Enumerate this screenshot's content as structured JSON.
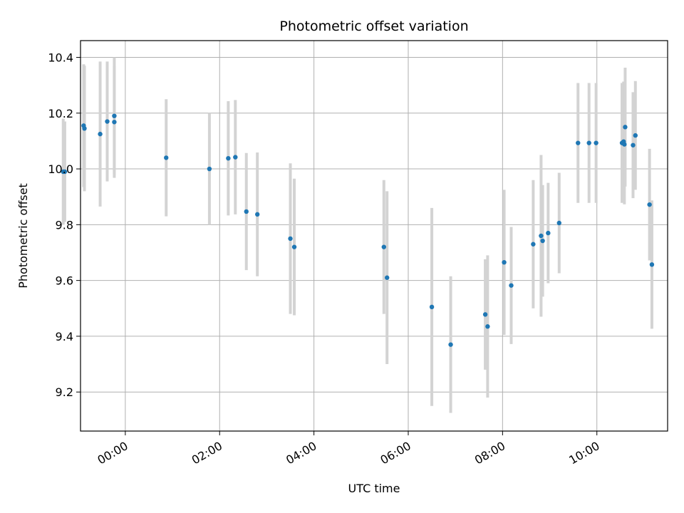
{
  "chart_data": {
    "type": "scatter",
    "title": "Photometric offset variation",
    "xlabel": "UTC time",
    "ylabel": "Photometric offset",
    "xlim": [
      "-00:57",
      "11:30"
    ],
    "ylim": [
      9.06,
      10.46
    ],
    "x_ticks": [
      "00:00",
      "02:00",
      "04:00",
      "06:00",
      "08:00",
      "10:00"
    ],
    "y_ticks": [
      9.2,
      9.4,
      9.6,
      9.8,
      10.0,
      10.2,
      10.4
    ],
    "grid": true,
    "point_color": "#1f77b4",
    "errorbar_color": "#d3d3d3",
    "points": [
      {
        "t": "-01:19",
        "y": 9.99,
        "err": 0.19
      },
      {
        "t": "-01:17",
        "y": 9.99,
        "err": 0.18
      },
      {
        "t": "-00:53",
        "y": 10.155,
        "err": 0.22
      },
      {
        "t": "-00:52",
        "y": 10.145,
        "err": 0.225
      },
      {
        "t": "-00:32",
        "y": 10.125,
        "err": 0.26
      },
      {
        "t": "-00:23",
        "y": 10.17,
        "err": 0.215
      },
      {
        "t": "-00:14",
        "y": 10.19,
        "err": 0.21
      },
      {
        "t": "-00:14",
        "y": 10.168,
        "err": 0.2
      },
      {
        "t": "00:52",
        "y": 10.04,
        "err": 0.21
      },
      {
        "t": "01:47",
        "y": 10.0,
        "err": 0.2
      },
      {
        "t": "02:11",
        "y": 10.038,
        "err": 0.205
      },
      {
        "t": "02:20",
        "y": 10.042,
        "err": 0.205
      },
      {
        "t": "02:34",
        "y": 9.847,
        "err": 0.21
      },
      {
        "t": "02:48",
        "y": 9.837,
        "err": 0.222
      },
      {
        "t": "03:30",
        "y": 9.75,
        "err": 0.27
      },
      {
        "t": "03:35",
        "y": 9.72,
        "err": 0.245
      },
      {
        "t": "05:29",
        "y": 9.72,
        "err": 0.24
      },
      {
        "t": "05:33",
        "y": 9.61,
        "err": 0.31
      },
      {
        "t": "06:30",
        "y": 9.505,
        "err": 0.355
      },
      {
        "t": "06:54",
        "y": 9.37,
        "err": 0.245
      },
      {
        "t": "07:38",
        "y": 9.478,
        "err": 0.198
      },
      {
        "t": "07:41",
        "y": 9.435,
        "err": 0.255
      },
      {
        "t": "08:02",
        "y": 9.665,
        "err": 0.26
      },
      {
        "t": "08:11",
        "y": 9.582,
        "err": 0.21
      },
      {
        "t": "08:39",
        "y": 9.73,
        "err": 0.23
      },
      {
        "t": "08:49",
        "y": 9.76,
        "err": 0.29
      },
      {
        "t": "08:51",
        "y": 9.742,
        "err": 0.2
      },
      {
        "t": "08:58",
        "y": 9.77,
        "err": 0.18
      },
      {
        "t": "09:12",
        "y": 9.806,
        "err": 0.18
      },
      {
        "t": "09:36",
        "y": 10.093,
        "err": 0.215
      },
      {
        "t": "09:50",
        "y": 10.093,
        "err": 0.215
      },
      {
        "t": "09:59",
        "y": 10.093,
        "err": 0.215
      },
      {
        "t": "10:32",
        "y": 10.093,
        "err": 0.215
      },
      {
        "t": "10:34",
        "y": 10.098,
        "err": 0.215
      },
      {
        "t": "10:35",
        "y": 10.088,
        "err": 0.215
      },
      {
        "t": "10:36",
        "y": 10.15,
        "err": 0.213
      },
      {
        "t": "10:46",
        "y": 10.085,
        "err": 0.19
      },
      {
        "t": "10:49",
        "y": 10.12,
        "err": 0.195
      },
      {
        "t": "11:07",
        "y": 9.872,
        "err": 0.2
      },
      {
        "t": "11:10",
        "y": 9.657,
        "err": 0.23
      }
    ]
  }
}
